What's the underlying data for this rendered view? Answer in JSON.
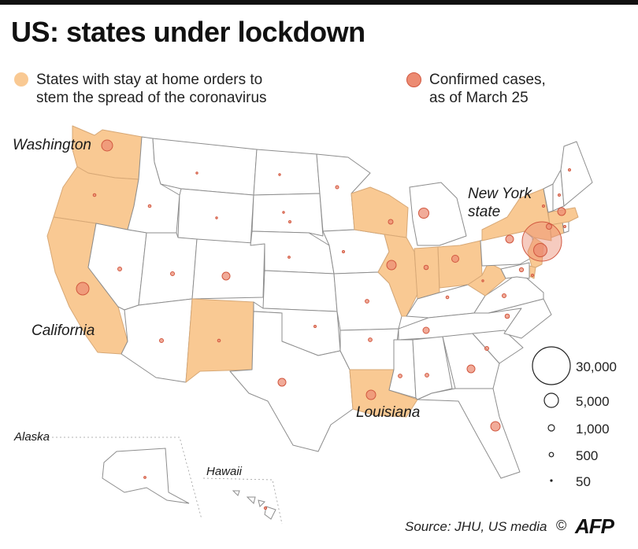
{
  "title": "US: states under lockdown",
  "legend": {
    "lockdown_line1": "States with stay at home orders to",
    "lockdown_line2": "stem the spread of the coronavirus",
    "cases_line1": "Confirmed cases,",
    "cases_line2": "as of March 25",
    "lockdown_color": "#f9c993",
    "cases_color": "#ec8b72"
  },
  "labels": {
    "washington": "Washington",
    "california": "California",
    "new_york_line1": "New York",
    "new_york_line2": "state",
    "louisiana": "Louisiana",
    "alaska": "Alaska",
    "hawaii": "Hawaii"
  },
  "size_legend": [
    "30,000",
    "5,000",
    "1,000",
    "500",
    "50"
  ],
  "source": "Source: JHU, US media",
  "copyright": "©",
  "logo": "AFP",
  "states_lockdown": [
    "Washington",
    "Oregon",
    "California",
    "New Mexico",
    "Louisiana",
    "Wisconsin",
    "Illinois",
    "Indiana",
    "Ohio",
    "West Virginia",
    "New York",
    "Connecticut",
    "New Jersey",
    "Massachusetts",
    "Delaware"
  ],
  "cases": [
    {
      "state": "New York",
      "value": 30000
    },
    {
      "state": "New Jersey",
      "value": 4400
    },
    {
      "state": "California",
      "value": 2800
    },
    {
      "state": "Washington",
      "value": 2500
    },
    {
      "state": "Michigan",
      "value": 1800
    },
    {
      "state": "Illinois",
      "value": 1500
    },
    {
      "state": "Florida",
      "value": 1700
    },
    {
      "state": "Louisiana",
      "value": 1800
    },
    {
      "state": "Massachusetts",
      "value": 1200
    },
    {
      "state": "Georgia",
      "value": 1100
    },
    {
      "state": "Colorado",
      "value": 1000
    },
    {
      "state": "Texas",
      "value": 1000
    },
    {
      "state": "Pennsylvania",
      "value": 1100
    },
    {
      "state": "Ohio",
      "value": 700
    },
    {
      "state": "Connecticut",
      "value": 900
    },
    {
      "state": "Tennessee",
      "value": 800
    },
    {
      "state": "Wisconsin",
      "value": 600
    },
    {
      "state": "Indiana",
      "value": 480
    },
    {
      "state": "North Carolina",
      "value": 500
    },
    {
      "state": "Maryland",
      "value": 400
    },
    {
      "state": "Missouri",
      "value": 300
    },
    {
      "state": "Virginia",
      "value": 400
    },
    {
      "state": "South Carolina",
      "value": 400
    },
    {
      "state": "Mississippi",
      "value": 380
    },
    {
      "state": "Alabama",
      "value": 380
    },
    {
      "state": "Utah",
      "value": 350
    },
    {
      "state": "Minnesota",
      "value": 290
    },
    {
      "state": "Oregon",
      "value": 260
    },
    {
      "state": "Nevada",
      "value": 320
    },
    {
      "state": "Arizona",
      "value": 400
    },
    {
      "state": "Kentucky",
      "value": 200
    },
    {
      "state": "Arkansas",
      "value": 280
    },
    {
      "state": "Oklahoma",
      "value": 160
    },
    {
      "state": "Iowa",
      "value": 150
    },
    {
      "state": "Kansas",
      "value": 130
    },
    {
      "state": "Rhode Island",
      "value": 130
    },
    {
      "state": "Delaware",
      "value": 120
    },
    {
      "state": "New Hampshire",
      "value": 110
    },
    {
      "state": "Idaho",
      "value": 120
    },
    {
      "state": "Vermont",
      "value": 120
    },
    {
      "state": "Maine",
      "value": 120
    },
    {
      "state": "New Mexico",
      "value": 110
    },
    {
      "state": "Montana",
      "value": 60
    },
    {
      "state": "Nebraska",
      "value": 70
    },
    {
      "state": "South Dakota",
      "value": 50
    },
    {
      "state": "North Dakota",
      "value": 50
    },
    {
      "state": "West Virginia",
      "value": 50
    },
    {
      "state": "Wyoming",
      "value": 50
    },
    {
      "state": "Hawaii",
      "value": 90
    },
    {
      "state": "Alaska",
      "value": 50
    }
  ]
}
